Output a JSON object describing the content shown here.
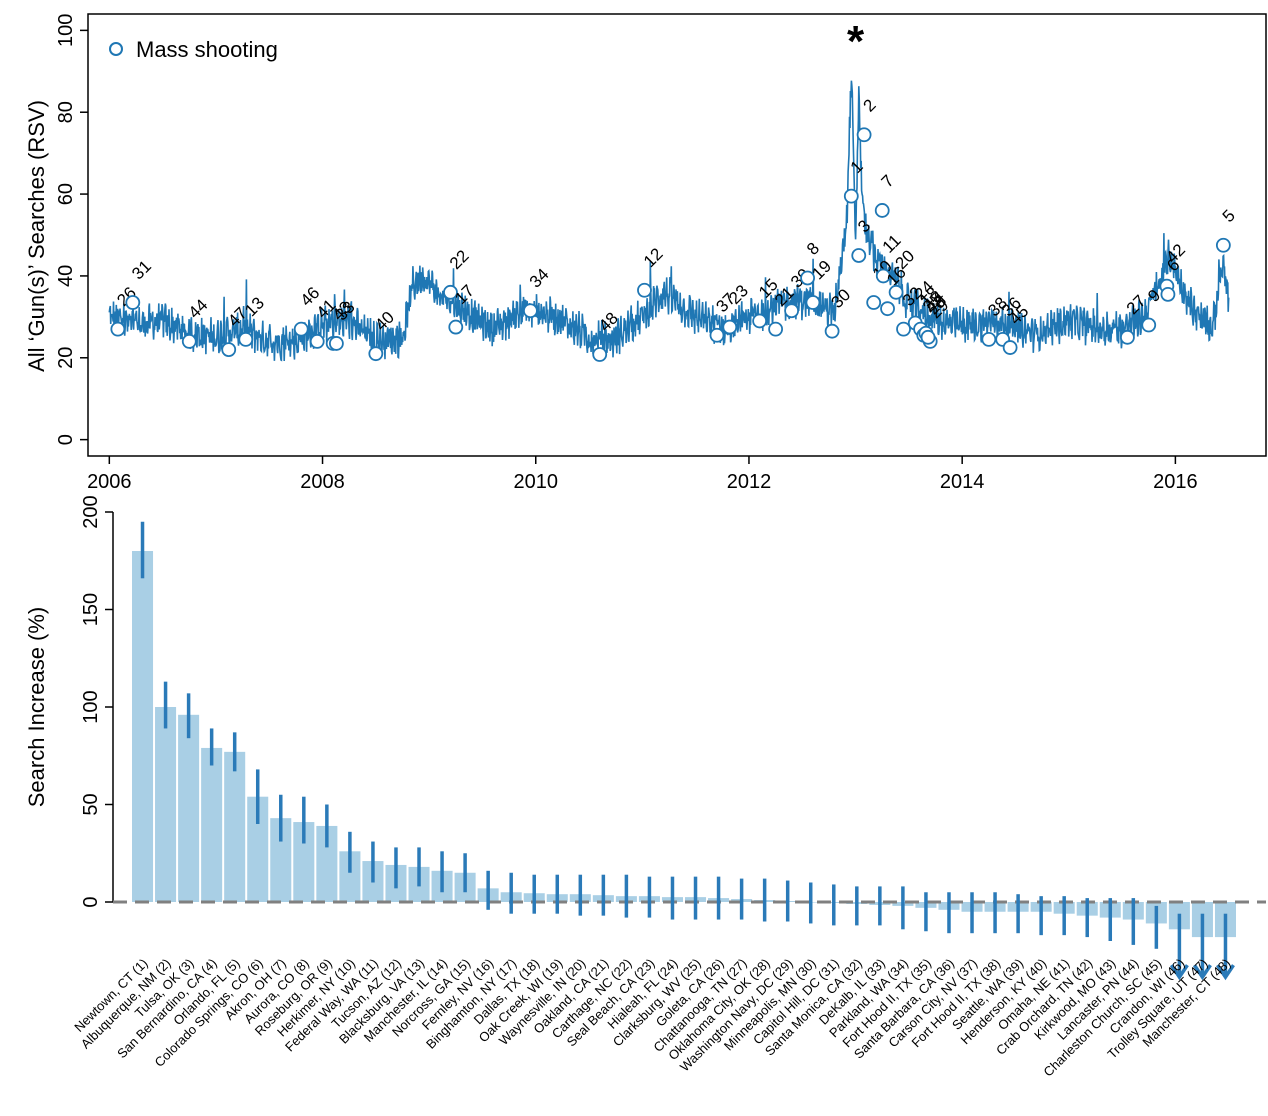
{
  "colors": {
    "line": "#1f77b4",
    "bar": "#a9cfe5",
    "err": "#2a7ab8",
    "zero_line": "#808080",
    "axis": "#000000"
  },
  "chart_data": [
    {
      "type": "line",
      "ylabel": "All ‘Gun(s)’ Searches (RSV)",
      "xlim": [
        2005.8,
        2016.85
      ],
      "ylim": [
        -4,
        104
      ],
      "x_ticks": [
        2006,
        2008,
        2010,
        2012,
        2014,
        2016
      ],
      "x_tick_labels": [
        "2006",
        "2008",
        "2010",
        "2012",
        "2014",
        "2016"
      ],
      "y_ticks": [
        0,
        20,
        40,
        60,
        80,
        100
      ],
      "y_tick_labels": [
        "0",
        "20",
        "40",
        "60",
        "80",
        "100"
      ],
      "legend": {
        "label": "Mass shooting",
        "position": "top-left"
      },
      "star_label": "*",
      "star_x": 2013.0,
      "series": [
        {
          "x": [
            2006.0,
            2006.25,
            2006.5,
            2006.75,
            2007.0,
            2007.25,
            2007.5,
            2007.75,
            2008.0,
            2008.25,
            2008.5,
            2008.75,
            2008.85,
            2008.95,
            2009.1,
            2009.3,
            2009.6,
            2009.9,
            2010.2,
            2010.5,
            2010.7,
            2011.0,
            2011.2,
            2011.5,
            2011.8,
            2012.0,
            2012.2,
            2012.4,
            2012.6,
            2012.8,
            2012.92,
            2012.96,
            2013.0,
            2013.03,
            2013.06,
            2013.1,
            2013.2,
            2013.35,
            2013.5,
            2013.7,
            2013.9,
            2014.1,
            2014.3,
            2014.5,
            2014.7,
            2015.0,
            2015.3,
            2015.5,
            2015.7,
            2015.85,
            2015.95,
            2016.05,
            2016.2,
            2016.35,
            2016.45,
            2016.5
          ],
          "y": [
            30,
            28,
            29,
            26,
            25,
            27,
            24,
            24,
            28,
            29,
            24,
            25,
            38,
            40,
            35,
            32,
            27,
            32,
            30,
            25,
            24,
            30,
            36,
            30,
            27,
            30,
            32,
            34,
            34,
            31,
            55,
            90,
            48,
            85,
            60,
            50,
            44,
            40,
            33,
            30,
            28,
            28,
            29,
            27,
            26,
            29,
            27,
            27,
            30,
            38,
            45,
            38,
            30,
            27,
            45,
            33
          ]
        }
      ],
      "events": [
        {
          "label": "26",
          "x": 2006.08,
          "y": 27
        },
        {
          "label": "31",
          "x": 2006.22,
          "y": 33.5
        },
        {
          "label": "44",
          "x": 2006.75,
          "y": 24
        },
        {
          "label": "47",
          "x": 2007.12,
          "y": 22
        },
        {
          "label": "13",
          "x": 2007.28,
          "y": 24.5
        },
        {
          "label": "46",
          "x": 2007.8,
          "y": 27
        },
        {
          "label": "41",
          "x": 2007.95,
          "y": 24
        },
        {
          "label": "43",
          "x": 2008.1,
          "y": 23.5
        },
        {
          "label": "33",
          "x": 2008.13,
          "y": 23.5
        },
        {
          "label": "40",
          "x": 2008.5,
          "y": 21
        },
        {
          "label": "22",
          "x": 2009.2,
          "y": 36
        },
        {
          "label": "17",
          "x": 2009.25,
          "y": 27.5
        },
        {
          "label": "34",
          "x": 2009.95,
          "y": 31.5
        },
        {
          "label": "48",
          "x": 2010.6,
          "y": 20.8
        },
        {
          "label": "12",
          "x": 2011.02,
          "y": 36.5
        },
        {
          "label": "37",
          "x": 2011.7,
          "y": 25.5
        },
        {
          "label": "23",
          "x": 2011.82,
          "y": 27.5
        },
        {
          "label": "15",
          "x": 2012.1,
          "y": 29
        },
        {
          "label": "21",
          "x": 2012.25,
          "y": 27
        },
        {
          "label": "39",
          "x": 2012.4,
          "y": 31.5
        },
        {
          "label": "8",
          "x": 2012.55,
          "y": 39.5
        },
        {
          "label": "19",
          "x": 2012.6,
          "y": 33.5
        },
        {
          "label": "30",
          "x": 2012.78,
          "y": 26.5
        },
        {
          "label": "1",
          "x": 2012.96,
          "y": 59.5
        },
        {
          "label": "3",
          "x": 2013.03,
          "y": 45
        },
        {
          "label": "2",
          "x": 2013.08,
          "y": 74.5
        },
        {
          "label": "7",
          "x": 2013.25,
          "y": 56
        },
        {
          "label": "10",
          "x": 2013.17,
          "y": 33.5
        },
        {
          "label": "11",
          "x": 2013.26,
          "y": 40
        },
        {
          "label": "16",
          "x": 2013.3,
          "y": 32
        },
        {
          "label": "20",
          "x": 2013.38,
          "y": 36
        },
        {
          "label": "32",
          "x": 2013.45,
          "y": 27
        },
        {
          "label": "24",
          "x": 2013.56,
          "y": 28.5
        },
        {
          "label": "18",
          "x": 2013.61,
          "y": 27
        },
        {
          "label": "25",
          "x": 2013.64,
          "y": 25.5
        },
        {
          "label": "14",
          "x": 2013.66,
          "y": 26
        },
        {
          "label": "29",
          "x": 2013.7,
          "y": 24
        },
        {
          "label": "28",
          "x": 2013.68,
          "y": 25
        },
        {
          "label": "38",
          "x": 2014.25,
          "y": 24.5
        },
        {
          "label": "36",
          "x": 2014.38,
          "y": 24.5
        },
        {
          "label": "45",
          "x": 2014.45,
          "y": 22.5
        },
        {
          "label": "27",
          "x": 2015.55,
          "y": 25
        },
        {
          "label": "9",
          "x": 2015.75,
          "y": 28
        },
        {
          "label": "42",
          "x": 2015.92,
          "y": 37.5
        },
        {
          "label": "6",
          "x": 2015.93,
          "y": 35.5
        },
        {
          "label": "5",
          "x": 2016.45,
          "y": 47.5
        }
      ]
    },
    {
      "type": "bar",
      "ylabel": "Search Increase (%)",
      "ylim": [
        -25,
        200
      ],
      "y_ticks": [
        0,
        50,
        100,
        150,
        200
      ],
      "y_tick_labels": [
        "0",
        "50",
        "100",
        "150",
        "200"
      ],
      "categories": [
        "Newtown, CT (1)",
        "Albuquerque, NM (2)",
        "Tulsa, OK (3)",
        "San Bernardino, CA (4)",
        "Orlando, FL (5)",
        "Colorado Springs, CO (6)",
        "Akron, OH (7)",
        "Aurora, CO (8)",
        "Roseburg, OR (9)",
        "Herkimer, NY (10)",
        "Federal Way, WA (11)",
        "Tucson, AZ (12)",
        "Blacksburg, VA (13)",
        "Manchester, IL (14)",
        "Norcross, GA (15)",
        "Fernley, NV (16)",
        "Binghamton, NY (17)",
        "Dallas, TX (18)",
        "Oak Creek, WI (19)",
        "Waynesville, IN (20)",
        "Oakland, CA (21)",
        "Carthage, NC (22)",
        "Seal Beach, CA (23)",
        "Hialeah, FL (24)",
        "Clarksburg, WV (25)",
        "Goleta, CA (26)",
        "Chattanooga, TN (27)",
        "Oklahoma City, OK (28)",
        "Washington Navy, DC (29)",
        "Minneapolis, MN (30)",
        "Capitol Hill, DC (31)",
        "Santa Monica, CA (32)",
        "DeKalb, IL (33)",
        "Parkland, WA (34)",
        "Fort Hood II, TX (35)",
        "Santa Barbara, CA (36)",
        "Carson City, NV (37)",
        "Fort Hood II, TX (38)",
        "Seattle, WA (39)",
        "Henderson, KY (40)",
        "Omaha, NE (41)",
        "Crab Orchard, TN (42)",
        "Kirkwood, MO (43)",
        "Lancaster, PN (44)",
        "Charleston Church, SC (45)",
        "Crandon, WI (46)",
        "Trolley Square, UT (47)",
        "Manchester, CT (48)"
      ],
      "values": [
        180,
        100,
        96,
        79,
        77,
        54,
        43,
        41,
        39,
        26,
        21,
        19,
        18,
        16,
        15,
        7,
        5,
        4.5,
        4,
        4,
        3.5,
        3,
        3,
        2.5,
        2.5,
        2,
        1.5,
        1,
        0.5,
        0,
        -0.5,
        -1,
        -1.5,
        -2,
        -3,
        -4,
        -5,
        -5,
        -5,
        -5,
        -6,
        -7,
        -8,
        -9,
        -11,
        -14,
        -18,
        -18
      ],
      "err_low": [
        166,
        89,
        84,
        70,
        67,
        40,
        31,
        30,
        28,
        15,
        10,
        7,
        8,
        5,
        5,
        -4,
        -6,
        -6,
        -6,
        -7,
        -7,
        -8,
        -8,
        -9,
        -9,
        -9,
        -9,
        -10,
        -10,
        -11,
        -12,
        -12,
        -12,
        -14,
        -15,
        -16,
        -16,
        -16,
        -16,
        -17,
        -17,
        -18,
        -20,
        -22,
        -24,
        -18,
        -18,
        -18
      ],
      "err_high": [
        195,
        113,
        107,
        89,
        87,
        68,
        55,
        54,
        50,
        36,
        31,
        28,
        28,
        26,
        25,
        16,
        15,
        14,
        14,
        14,
        14,
        14,
        13,
        13,
        13,
        13,
        12,
        12,
        11,
        10,
        9,
        8,
        8,
        8,
        5,
        5,
        5,
        5,
        4,
        3,
        3,
        2,
        2,
        2,
        -2,
        -6,
        -6,
        -6
      ],
      "arrow_down": [
        false,
        false,
        false,
        false,
        false,
        false,
        false,
        false,
        false,
        false,
        false,
        false,
        false,
        false,
        false,
        false,
        false,
        false,
        false,
        false,
        false,
        false,
        false,
        false,
        false,
        false,
        false,
        false,
        false,
        false,
        false,
        false,
        false,
        false,
        false,
        false,
        false,
        false,
        false,
        false,
        false,
        false,
        false,
        false,
        false,
        true,
        true,
        true
      ]
    }
  ]
}
